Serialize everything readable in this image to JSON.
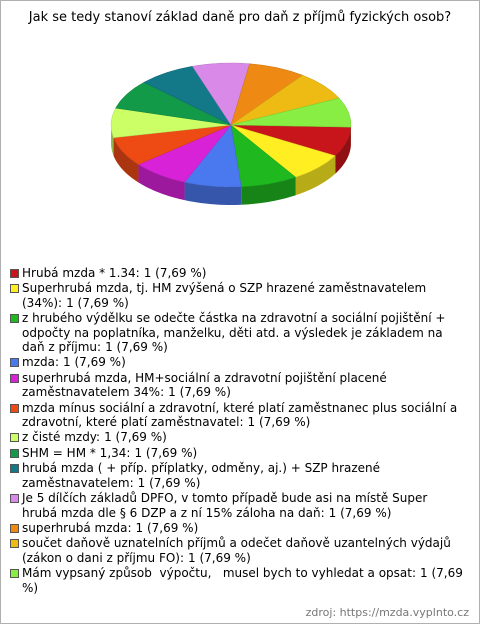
{
  "chart_data": {
    "type": "pie",
    "title": "Jak se tedy stanoví základ daně pro daň z příjmů fyzických osob?",
    "categories": [
      "Hrubá mzda * 1.34:",
      "Superhrubá mzda, tj. HM zvýšená o SZP hrazené zaměstnavatelem (34%):",
      "z hrubého výdělku se odečte částka na zdravotní a sociální pojištění + odpočty na poplatníka, manželku, děti atd. a výsledek je základem na daň z příjmu:",
      "mzda:",
      "superhrubá mzda, HM+sociální a zdravotní pojištění placené zaměstnavatelem 34%:",
      "mzda mínus sociální a zdravotní, které platí zaměstnanec plus sociální a zdravotní, které platí zaměstnavatel:",
      "z čisté mzdy:",
      "SHM = HM * 1,34:",
      "hrubá mzda ( + příp. příplatky, odměny, aj.) + SZP hrazené zaměstnavatelem:",
      "Je 5 dílčích základů DPFO, v tomto případě bude asi na místě Super hrubá mzda dle § 6 DZP a z ní 15% záloha na daň:",
      "superhrubá mzda:",
      "součet daňově uznatelních příjmů a odečet daňově uzantelných výdajů (zákon o dani z příjmu FO):",
      "Mám vypsaný způsob  výpočtu,   musel bych to vyhledat a opsat:"
    ],
    "values": [
      1,
      1,
      1,
      1,
      1,
      1,
      1,
      1,
      1,
      1,
      1,
      1,
      1
    ],
    "value_labels": [
      "1 (7,69 %)",
      "1 (7,69 %)",
      "1 (7,69 %)",
      "1 (7,69 %)",
      "1 (7,69 %)",
      "1 (7,69 %)",
      "1 (7,69 %)",
      "1 (7,69 %)",
      "1 (7,69 %)",
      "1 (7,69 %)",
      "1 (7,69 %)",
      "1 (7,69 %)",
      "1 (7,69 %)"
    ],
    "colors": [
      "#c8151b",
      "#ffee22",
      "#1fb81f",
      "#4a78ee",
      "#d822d8",
      "#ee4a14",
      "#ccff66",
      "#139a48",
      "#137888",
      "#d98ae8",
      "#ee8a14",
      "#eebb14",
      "#88ee44"
    ],
    "source": "zdroj: https://mzda.vyplnto.cz"
  }
}
